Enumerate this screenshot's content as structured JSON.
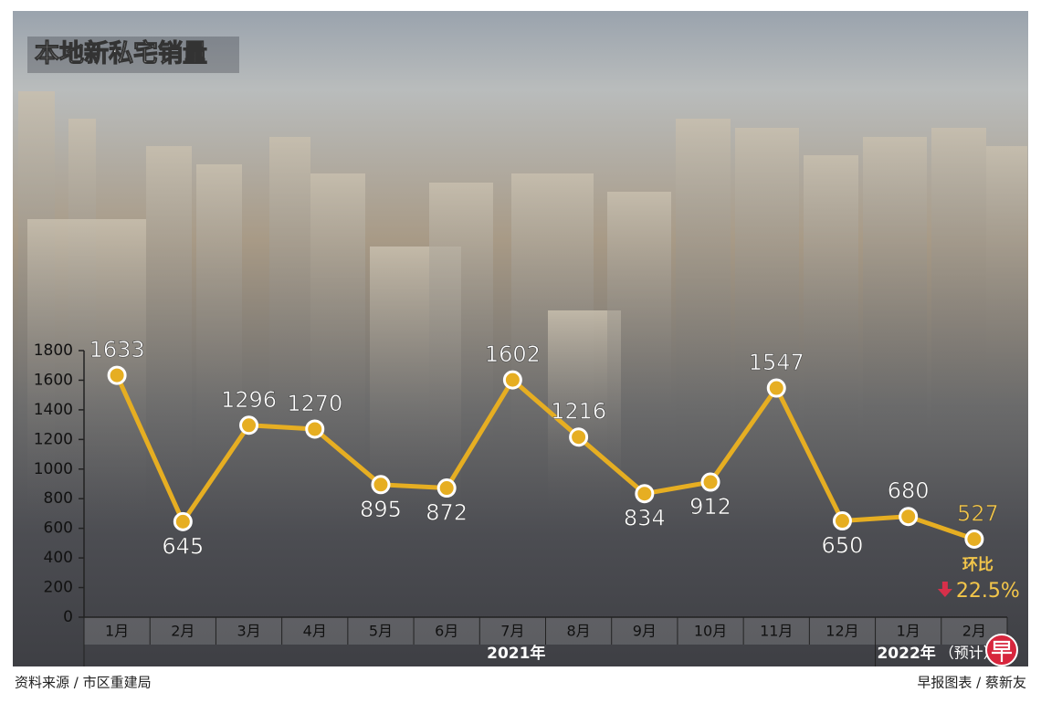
{
  "chart_data": {
    "type": "line",
    "title": "本地新私宅销量",
    "categories": [
      "1月",
      "2月",
      "3月",
      "4月",
      "5月",
      "6月",
      "7月",
      "8月",
      "9月",
      "10月",
      "11月",
      "12月",
      "1月",
      "2月"
    ],
    "year_groups": [
      {
        "label": "2021年",
        "span": 12
      },
      {
        "label": "2022年",
        "span": 2,
        "note": "（预计）"
      }
    ],
    "values": [
      1633,
      645,
      1296,
      1270,
      895,
      872,
      1602,
      1216,
      834,
      912,
      1547,
      650,
      680,
      527
    ],
    "color": "#e6ae22",
    "ylim": [
      0,
      1800
    ],
    "yticks": [
      0,
      200,
      400,
      600,
      800,
      1000,
      1200,
      1400,
      1600,
      1800
    ],
    "annotation": {
      "label": "环比",
      "change": "22.5%"
    },
    "source": "资料来源 / 市区重建局",
    "credit": "早报图表 / 蔡新友"
  }
}
